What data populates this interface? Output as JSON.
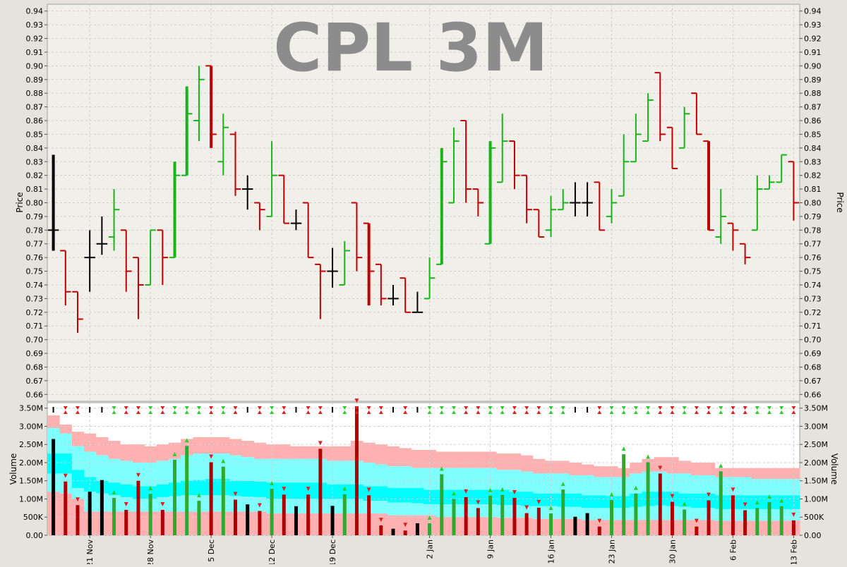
{
  "chart_data": [
    {
      "type": "ohlc",
      "title": "CPL 3M",
      "ylabel": "Price",
      "ylim": [
        0.655,
        0.945
      ],
      "y_tick_step": 0.01,
      "grid": true,
      "colors": {
        "up": "#18b418",
        "down": "#c00000",
        "flat": "#000000"
      },
      "x_tick_labels": [
        "21 Nov",
        "28 Nov",
        "5 Dec",
        "12 Dec",
        "19 Dec",
        "2 Jan",
        "9 Jan",
        "16 Jan",
        "23 Jan",
        "30 Jan",
        "6 Feb",
        "13 Feb"
      ],
      "x_tick_bar_index": [
        3,
        8,
        13,
        18,
        23,
        31,
        36,
        41,
        46,
        51,
        56,
        61
      ],
      "bars": [
        {
          "o": 0.78,
          "h": 0.835,
          "l": 0.765,
          "c": 0.78
        },
        {
          "o": 0.765,
          "h": 0.765,
          "l": 0.725,
          "c": 0.735
        },
        {
          "o": 0.735,
          "h": 0.735,
          "l": 0.705,
          "c": 0.715
        },
        {
          "o": 0.76,
          "h": 0.78,
          "l": 0.735,
          "c": 0.76
        },
        {
          "o": 0.77,
          "h": 0.79,
          "l": 0.762,
          "c": 0.77
        },
        {
          "o": 0.775,
          "h": 0.81,
          "l": 0.765,
          "c": 0.795
        },
        {
          "o": 0.78,
          "h": 0.78,
          "l": 0.735,
          "c": 0.75
        },
        {
          "o": 0.76,
          "h": 0.76,
          "l": 0.715,
          "c": 0.74
        },
        {
          "o": 0.74,
          "h": 0.78,
          "l": 0.74,
          "c": 0.78
        },
        {
          "o": 0.78,
          "h": 0.78,
          "l": 0.74,
          "c": 0.76
        },
        {
          "o": 0.76,
          "h": 0.83,
          "l": 0.76,
          "c": 0.82
        },
        {
          "o": 0.82,
          "h": 0.885,
          "l": 0.82,
          "c": 0.865
        },
        {
          "o": 0.86,
          "h": 0.9,
          "l": 0.845,
          "c": 0.89
        },
        {
          "o": 0.9,
          "h": 0.9,
          "l": 0.84,
          "c": 0.85
        },
        {
          "o": 0.83,
          "h": 0.865,
          "l": 0.82,
          "c": 0.855
        },
        {
          "o": 0.85,
          "h": 0.852,
          "l": 0.805,
          "c": 0.81
        },
        {
          "o": 0.81,
          "h": 0.82,
          "l": 0.795,
          "c": 0.81
        },
        {
          "o": 0.8,
          "h": 0.8,
          "l": 0.78,
          "c": 0.795
        },
        {
          "o": 0.79,
          "h": 0.845,
          "l": 0.79,
          "c": 0.82
        },
        {
          "o": 0.82,
          "h": 0.82,
          "l": 0.785,
          "c": 0.785
        },
        {
          "o": 0.785,
          "h": 0.795,
          "l": 0.78,
          "c": 0.785
        },
        {
          "o": 0.8,
          "h": 0.8,
          "l": 0.76,
          "c": 0.76
        },
        {
          "o": 0.755,
          "h": 0.755,
          "l": 0.715,
          "c": 0.75
        },
        {
          "o": 0.75,
          "h": 0.767,
          "l": 0.738,
          "c": 0.75
        },
        {
          "o": 0.74,
          "h": 0.772,
          "l": 0.74,
          "c": 0.765
        },
        {
          "o": 0.8,
          "h": 0.8,
          "l": 0.75,
          "c": 0.76
        },
        {
          "o": 0.785,
          "h": 0.785,
          "l": 0.725,
          "c": 0.75
        },
        {
          "o": 0.755,
          "h": 0.755,
          "l": 0.725,
          "c": 0.73
        },
        {
          "o": 0.73,
          "h": 0.74,
          "l": 0.725,
          "c": 0.73
        },
        {
          "o": 0.745,
          "h": 0.745,
          "l": 0.72,
          "c": 0.72
        },
        {
          "o": 0.72,
          "h": 0.735,
          "l": 0.72,
          "c": 0.72
        },
        {
          "o": 0.73,
          "h": 0.76,
          "l": 0.73,
          "c": 0.745
        },
        {
          "o": 0.755,
          "h": 0.84,
          "l": 0.755,
          "c": 0.83
        },
        {
          "o": 0.8,
          "h": 0.855,
          "l": 0.8,
          "c": 0.845
        },
        {
          "o": 0.86,
          "h": 0.86,
          "l": 0.8,
          "c": 0.81
        },
        {
          "o": 0.81,
          "h": 0.81,
          "l": 0.79,
          "c": 0.8
        },
        {
          "o": 0.77,
          "h": 0.845,
          "l": 0.77,
          "c": 0.84
        },
        {
          "o": 0.815,
          "h": 0.865,
          "l": 0.815,
          "c": 0.845
        },
        {
          "o": 0.845,
          "h": 0.845,
          "l": 0.81,
          "c": 0.82
        },
        {
          "o": 0.82,
          "h": 0.82,
          "l": 0.785,
          "c": 0.795
        },
        {
          "o": 0.795,
          "h": 0.795,
          "l": 0.775,
          "c": 0.775
        },
        {
          "o": 0.78,
          "h": 0.805,
          "l": 0.775,
          "c": 0.795
        },
        {
          "o": 0.795,
          "h": 0.81,
          "l": 0.795,
          "c": 0.8
        },
        {
          "o": 0.8,
          "h": 0.815,
          "l": 0.79,
          "c": 0.8
        },
        {
          "o": 0.8,
          "h": 0.815,
          "l": 0.79,
          "c": 0.8
        },
        {
          "o": 0.815,
          "h": 0.815,
          "l": 0.78,
          "c": 0.78
        },
        {
          "o": 0.79,
          "h": 0.81,
          "l": 0.785,
          "c": 0.8
        },
        {
          "o": 0.805,
          "h": 0.85,
          "l": 0.805,
          "c": 0.83
        },
        {
          "o": 0.83,
          "h": 0.865,
          "l": 0.83,
          "c": 0.85
        },
        {
          "o": 0.845,
          "h": 0.88,
          "l": 0.845,
          "c": 0.875
        },
        {
          "o": 0.895,
          "h": 0.895,
          "l": 0.845,
          "c": 0.85
        },
        {
          "o": 0.855,
          "h": 0.855,
          "l": 0.825,
          "c": 0.825
        },
        {
          "o": 0.84,
          "h": 0.87,
          "l": 0.84,
          "c": 0.865
        },
        {
          "o": 0.88,
          "h": 0.88,
          "l": 0.85,
          "c": 0.85
        },
        {
          "o": 0.845,
          "h": 0.845,
          "l": 0.78,
          "c": 0.78
        },
        {
          "o": 0.775,
          "h": 0.81,
          "l": 0.77,
          "c": 0.79
        },
        {
          "o": 0.785,
          "h": 0.785,
          "l": 0.765,
          "c": 0.78
        },
        {
          "o": 0.77,
          "h": 0.77,
          "l": 0.755,
          "c": 0.76
        },
        {
          "o": 0.78,
          "h": 0.82,
          "l": 0.78,
          "c": 0.81
        },
        {
          "o": 0.81,
          "h": 0.82,
          "l": 0.81,
          "c": 0.815
        },
        {
          "o": 0.815,
          "h": 0.835,
          "l": 0.815,
          "c": 0.835
        },
        {
          "o": 0.83,
          "h": 0.83,
          "l": 0.787,
          "c": 0.8
        }
      ]
    },
    {
      "type": "bar",
      "ylabel": "Volume",
      "ylim": [
        0,
        3650000
      ],
      "y_tick_values": [
        0,
        500000,
        1000000,
        1500000,
        2000000,
        2500000,
        3000000,
        3500000
      ],
      "y_tick_labels": [
        "0.00",
        "500K",
        "1.00M",
        "1.50M",
        "2.00M",
        "2.50M",
        "3.00M",
        "3.50M"
      ],
      "volume": [
        2650000,
        1480000,
        830000,
        1200000,
        1520000,
        1030000,
        700000,
        1500000,
        1140000,
        700000,
        2080000,
        2460000,
        950000,
        2010000,
        1890000,
        980000,
        850000,
        670000,
        1280000,
        1120000,
        800000,
        1120000,
        2380000,
        810000,
        1130000,
        3550000,
        1100000,
        270000,
        180000,
        130000,
        330000,
        330000,
        1680000,
        1000000,
        1050000,
        750000,
        1090000,
        1110000,
        1030000,
        610000,
        760000,
        600000,
        1260000,
        510000,
        610000,
        240000,
        970000,
        2230000,
        1150000,
        2010000,
        1700000,
        920000,
        710000,
        240000,
        960000,
        1760000,
        1100000,
        690000,
        750000,
        910000,
        800000,
        410000
      ],
      "bands": {
        "b1": [
          1200000,
          1150000,
          1000000,
          650000,
          650000,
          650000,
          650000,
          650000,
          650000,
          650000,
          650000,
          650000,
          650000,
          650000,
          650000,
          650000,
          650000,
          650000,
          600000,
          600000,
          600000,
          600000,
          600000,
          600000,
          600000,
          600000,
          600000,
          600000,
          550000,
          550000,
          550000,
          550000,
          500000,
          500000,
          500000,
          500000,
          500000,
          480000,
          480000,
          480000,
          450000,
          450000,
          450000,
          450000,
          420000,
          420000,
          420000,
          420000,
          420000,
          420000,
          420000,
          420000,
          420000,
          420000,
          420000,
          400000,
          400000,
          400000,
          400000,
          400000,
          400000,
          400000
        ],
        "b2": [
          1700000,
          1700000,
          1300000,
          1200000,
          1150000,
          1100000,
          1050000,
          1000000,
          1000000,
          1050000,
          1080000,
          1100000,
          1100000,
          1100000,
          1100000,
          1080000,
          1060000,
          1050000,
          1000000,
          1000000,
          1000000,
          1000000,
          1000000,
          1000000,
          1000000,
          1000000,
          950000,
          950000,
          900000,
          900000,
          880000,
          850000,
          850000,
          850000,
          850000,
          850000,
          850000,
          830000,
          830000,
          800000,
          800000,
          800000,
          780000,
          780000,
          750000,
          750000,
          750000,
          750000,
          780000,
          800000,
          820000,
          800000,
          780000,
          750000,
          750000,
          720000,
          720000,
          720000,
          720000,
          720000,
          720000,
          720000
        ],
        "b3": [
          2250000,
          2250000,
          1800000,
          1600000,
          1500000,
          1450000,
          1400000,
          1350000,
          1350000,
          1400000,
          1450000,
          1500000,
          1520000,
          1550000,
          1550000,
          1500000,
          1500000,
          1480000,
          1450000,
          1450000,
          1450000,
          1450000,
          1450000,
          1400000,
          1400000,
          1400000,
          1350000,
          1350000,
          1300000,
          1300000,
          1300000,
          1250000,
          1250000,
          1250000,
          1250000,
          1250000,
          1250000,
          1250000,
          1200000,
          1200000,
          1150000,
          1150000,
          1150000,
          1150000,
          1100000,
          1100000,
          1080000,
          1080000,
          1150000,
          1200000,
          1200000,
          1200000,
          1150000,
          1150000,
          1150000,
          1100000,
          1100000,
          1100000,
          1100000,
          1100000,
          1100000,
          1100000
        ],
        "b4": [
          2950000,
          2800000,
          2450000,
          2300000,
          2200000,
          2100000,
          2050000,
          2000000,
          2000000,
          2050000,
          2100000,
          2200000,
          2250000,
          2250000,
          2250000,
          2200000,
          2150000,
          2100000,
          2100000,
          2100000,
          2100000,
          2100000,
          2100000,
          2050000,
          2050000,
          2050000,
          2000000,
          1950000,
          1900000,
          1900000,
          1850000,
          1850000,
          1850000,
          1850000,
          1850000,
          1850000,
          1850000,
          1800000,
          1800000,
          1750000,
          1700000,
          1700000,
          1700000,
          1650000,
          1650000,
          1600000,
          1600000,
          1600000,
          1700000,
          1750000,
          1750000,
          1700000,
          1700000,
          1650000,
          1650000,
          1600000,
          1600000,
          1600000,
          1550000,
          1550000,
          1550000,
          1550000
        ],
        "b5": [
          3300000,
          3050000,
          2850000,
          2800000,
          2700000,
          2600000,
          2500000,
          2500000,
          2450000,
          2500000,
          2550000,
          2650000,
          2700000,
          2700000,
          2700000,
          2650000,
          2600000,
          2550000,
          2500000,
          2500000,
          2450000,
          2450000,
          2450000,
          2450000,
          2450000,
          2600000,
          2550000,
          2500000,
          2450000,
          2400000,
          2350000,
          2350000,
          2300000,
          2300000,
          2300000,
          2300000,
          2300000,
          2250000,
          2250000,
          2200000,
          2100000,
          2050000,
          2050000,
          2000000,
          1950000,
          1900000,
          1900000,
          1850000,
          2000000,
          2100000,
          2150000,
          2150000,
          2050000,
          2000000,
          2000000,
          1850000,
          1850000,
          1850000,
          1850000,
          1850000,
          1850000,
          1850000
        ]
      },
      "band_colors": {
        "outer": "#ffb0b0",
        "mid": "#80ffff",
        "core": "#00ffff"
      },
      "signal_colors": {
        "up": "#2ecc2e",
        "down": "#dd2020",
        "flat": "#000000"
      }
    }
  ]
}
